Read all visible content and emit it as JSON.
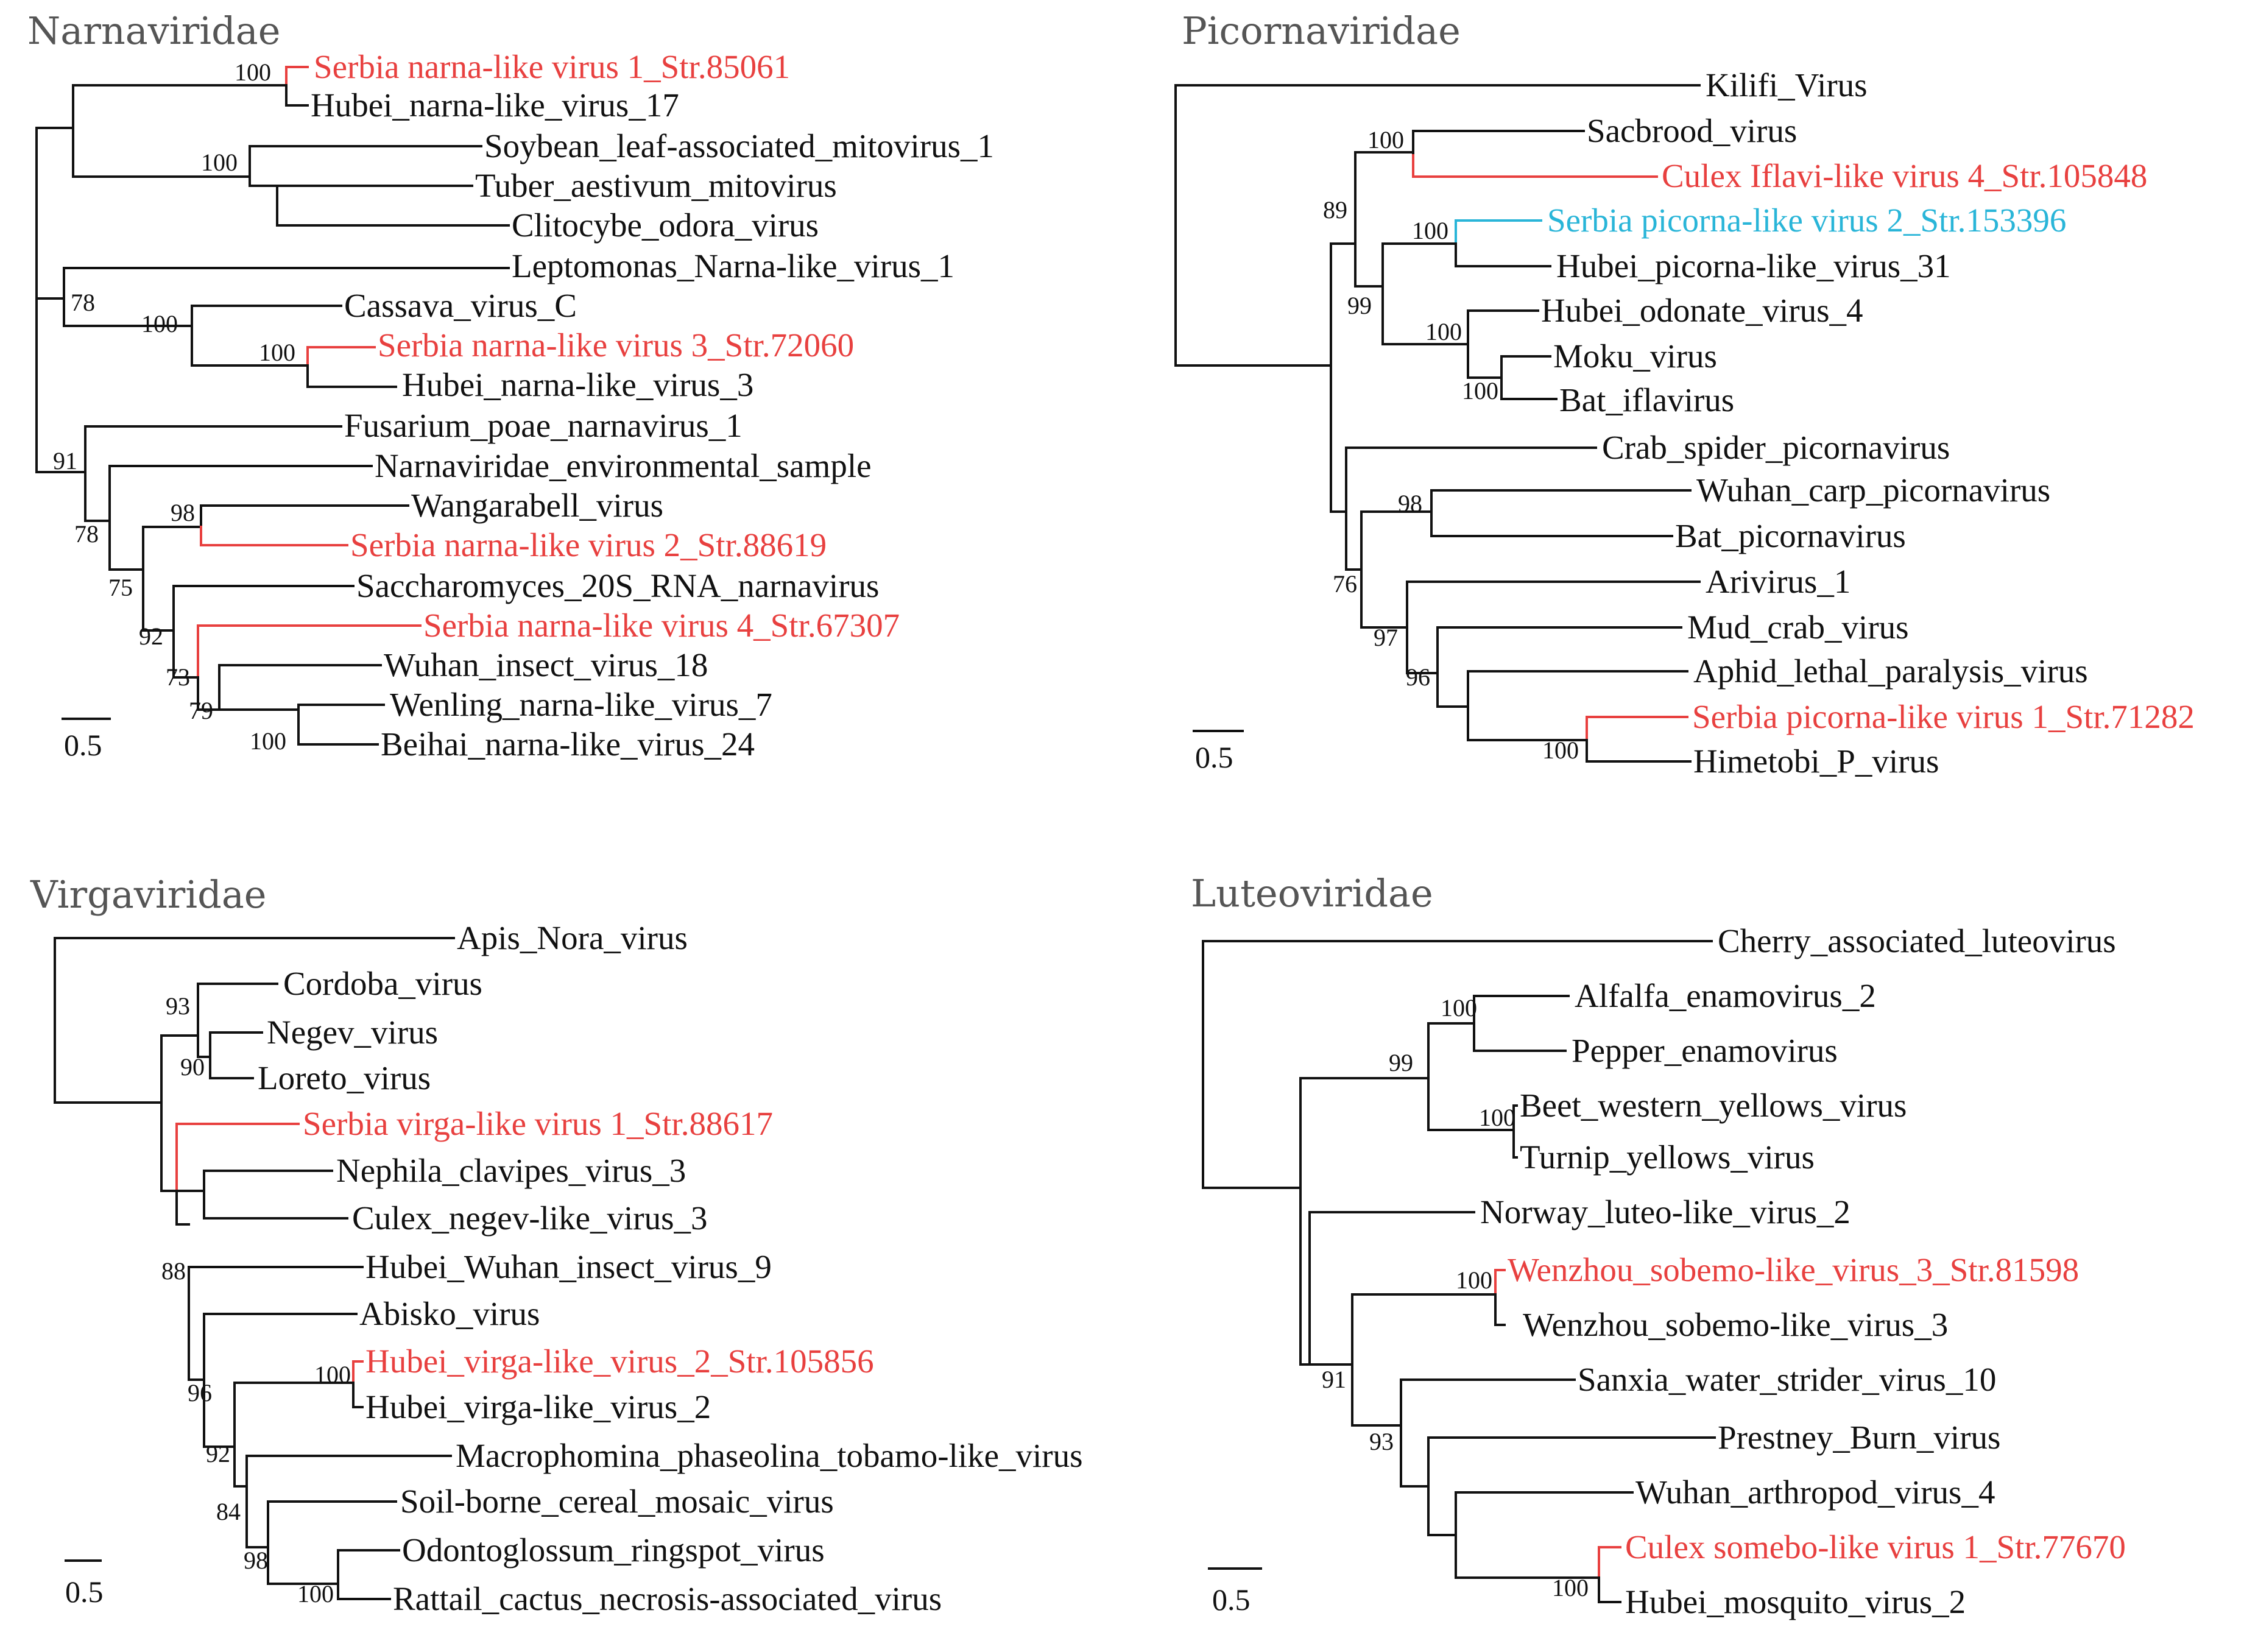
{
  "colors": {
    "black": "#111111",
    "red": "#e8403f",
    "cyan": "#29b5d8"
  },
  "panels": [
    {
      "title": "Narnaviridae",
      "scale_label": "0.5",
      "leaves": [
        {
          "label": "Serbia narna-like virus 1_Str.85061",
          "color": "red"
        },
        {
          "label": "Hubei_narna-like_virus_17",
          "color": "black"
        },
        {
          "label": "Soybean_leaf-associated_mitovirus_1",
          "color": "black"
        },
        {
          "label": "Tuber_aestivum_mitovirus",
          "color": "black"
        },
        {
          "label": "Clitocybe_odora_virus",
          "color": "black"
        },
        {
          "label": "Leptomonas_Narna-like_virus_1",
          "color": "black"
        },
        {
          "label": "Cassava_virus_C",
          "color": "black"
        },
        {
          "label": "Serbia narna-like virus 3_Str.72060",
          "color": "red"
        },
        {
          "label": "Hubei_narna-like_virus_3",
          "color": "black"
        },
        {
          "label": "Fusarium_poae_narnavirus_1",
          "color": "black"
        },
        {
          "label": "Narnaviridae_environmental_sample",
          "color": "black"
        },
        {
          "label": "Wangarabell_virus",
          "color": "black"
        },
        {
          "label": "Serbia narna-like virus 2_Str.88619",
          "color": "red"
        },
        {
          "label": "Saccharomyces_20S_RNA_narnavirus",
          "color": "black"
        },
        {
          "label": "Serbia narna-like virus 4_Str.67307",
          "color": "red"
        },
        {
          "label": "Wuhan_insect_virus_18",
          "color": "black"
        },
        {
          "label": "Wenling_narna-like_virus_7",
          "color": "black"
        },
        {
          "label": "Beihai_narna-like_virus_24",
          "color": "black"
        }
      ],
      "supports": [
        "100",
        "100",
        "100",
        "100",
        "78",
        "91",
        "78",
        "98",
        "75",
        "92",
        "73",
        "79",
        "100"
      ]
    },
    {
      "title": "Picornaviridae",
      "scale_label": "0.5",
      "leaves": [
        {
          "label": "Kilifi_Virus",
          "color": "black"
        },
        {
          "label": "Sacbrood_virus",
          "color": "black"
        },
        {
          "label": "Culex Iflavi-like virus 4_Str.105848",
          "color": "red"
        },
        {
          "label": "Serbia picorna-like virus 2_Str.153396",
          "color": "cyan"
        },
        {
          "label": "Hubei_picorna-like_virus_31",
          "color": "black"
        },
        {
          "label": "Hubei_odonate_virus_4",
          "color": "black"
        },
        {
          "label": "Moku_virus",
          "color": "black"
        },
        {
          "label": "Bat_iflavirus",
          "color": "black"
        },
        {
          "label": "Crab_spider_picornavirus",
          "color": "black"
        },
        {
          "label": "Wuhan_carp_picornavirus",
          "color": "black"
        },
        {
          "label": "Bat_picornavirus",
          "color": "black"
        },
        {
          "label": "Arivirus_1",
          "color": "black"
        },
        {
          "label": "Mud_crab_virus",
          "color": "black"
        },
        {
          "label": "Aphid_lethal_paralysis_virus",
          "color": "black"
        },
        {
          "label": "Serbia picorna-like virus 1_Str.71282",
          "color": "red"
        },
        {
          "label": "Himetobi_P_virus",
          "color": "black"
        }
      ],
      "supports": [
        "100",
        "89",
        "100",
        "99",
        "100",
        "100",
        "98",
        "76",
        "97",
        "96",
        "100"
      ]
    },
    {
      "title": "Virgaviridae",
      "scale_label": "0.5",
      "leaves": [
        {
          "label": "Apis_Nora_virus",
          "color": "black"
        },
        {
          "label": "Cordoba_virus",
          "color": "black"
        },
        {
          "label": "Negev_virus",
          "color": "black"
        },
        {
          "label": "Loreto_virus",
          "color": "black"
        },
        {
          "label": "Serbia virga-like virus 1_Str.88617",
          "color": "red"
        },
        {
          "label": "Nephila_clavipes_virus_3",
          "color": "black"
        },
        {
          "label": "Culex_negev-like_virus_3",
          "color": "black"
        },
        {
          "label": "Hubei_Wuhan_insect_virus_9",
          "color": "black"
        },
        {
          "label": "Abisko_virus",
          "color": "black"
        },
        {
          "label": "Hubei_virga-like_virus_2_Str.105856",
          "color": "red"
        },
        {
          "label": "Hubei_virga-like_virus_2",
          "color": "black"
        },
        {
          "label": "Macrophomina_phaseolina_tobamo-like_virus",
          "color": "black"
        },
        {
          "label": "Soil-borne_cereal_mosaic_virus",
          "color": "black"
        },
        {
          "label": "Odontoglossum_ringspot_virus",
          "color": "black"
        },
        {
          "label": "Rattail_cactus_necrosis-associated_virus",
          "color": "black"
        }
      ],
      "supports": [
        "93",
        "90",
        "88",
        "100",
        "96",
        "92",
        "84",
        "98",
        "100"
      ]
    },
    {
      "title": "Luteoviridae",
      "scale_label": "0.5",
      "leaves": [
        {
          "label": "Cherry_associated_luteovirus",
          "color": "black"
        },
        {
          "label": "Alfalfa_enamovirus_2",
          "color": "black"
        },
        {
          "label": "Pepper_enamovirus",
          "color": "black"
        },
        {
          "label": "Beet_western_yellows_virus",
          "color": "black"
        },
        {
          "label": "Turnip_yellows_virus",
          "color": "black"
        },
        {
          "label": "Norway_luteo-like_virus_2",
          "color": "black"
        },
        {
          "label": "Wenzhou_sobemo-like_virus_3_Str.81598",
          "color": "red"
        },
        {
          "label": "Wenzhou_sobemo-like_virus_3",
          "color": "black"
        },
        {
          "label": "Sanxia_water_strider_virus_10",
          "color": "black"
        },
        {
          "label": "Prestney_Burn_virus",
          "color": "black"
        },
        {
          "label": "Wuhan_arthropod_virus_4",
          "color": "black"
        },
        {
          "label": "Culex somebo-like virus 1_Str.77670",
          "color": "red"
        },
        {
          "label": "Hubei_mosquito_virus_2",
          "color": "black"
        }
      ],
      "supports": [
        "100",
        "99",
        "100",
        "100",
        "91",
        "93",
        "100"
      ]
    }
  ]
}
